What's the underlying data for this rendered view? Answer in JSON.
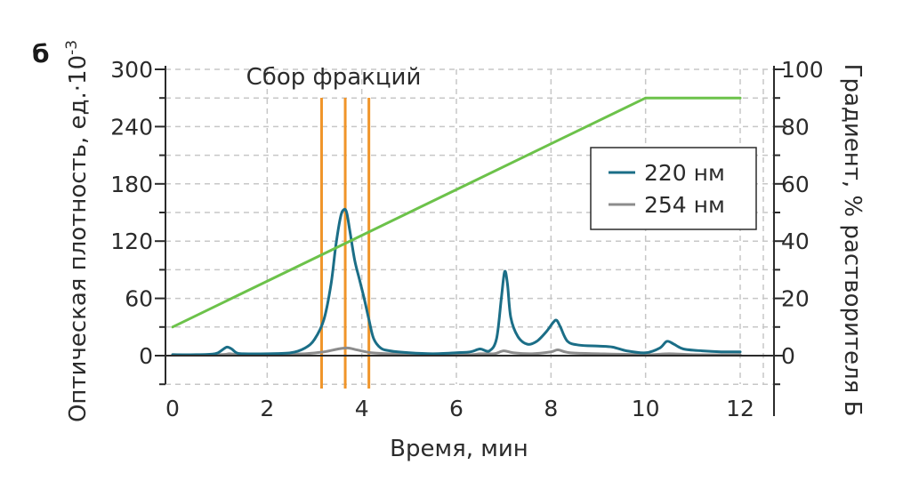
{
  "panel_label": "б",
  "colors": {
    "nm220": "#1b6e87",
    "nm254": "#8c8c8c",
    "gradient": "#6cc24a",
    "fraction_lines": "#f0952a",
    "grid": "#c7c7c7",
    "axis": "#2b2b2b"
  },
  "chart_data": {
    "type": "line",
    "xlabel": "Время, мин",
    "ylabel_left": "Оптическая плотность, ед.·10",
    "ylabel_left_sup": "-3",
    "ylabel_right": "Градиент, % растворителя Б",
    "xlim": [
      0,
      12.5
    ],
    "ylim_left": [
      -60,
      300
    ],
    "ylim_right": [
      -20,
      100
    ],
    "x_ticks": [
      "0",
      "2",
      "4",
      "6",
      "8",
      "10",
      "12"
    ],
    "y_left_ticks": [
      "0",
      "60",
      "120",
      "180",
      "240",
      "300"
    ],
    "y_right_ticks": [
      "0",
      "20",
      "40",
      "60",
      "80",
      "100"
    ],
    "grid": true,
    "legend_position": "right",
    "annotation": "Сбор фракций",
    "fraction_lines_x": [
      3.15,
      3.65,
      4.15
    ],
    "series": [
      {
        "name": "220 нм",
        "axis": "left",
        "x": [
          0,
          0.5,
          0.9,
          1.05,
          1.15,
          1.25,
          1.35,
          1.5,
          2.0,
          2.5,
          2.8,
          3.0,
          3.2,
          3.35,
          3.45,
          3.55,
          3.62,
          3.68,
          3.75,
          3.85,
          3.95,
          4.05,
          4.15,
          4.25,
          4.4,
          4.6,
          5.0,
          5.5,
          6.0,
          6.3,
          6.5,
          6.7,
          6.85,
          6.95,
          7.02,
          7.08,
          7.15,
          7.3,
          7.5,
          7.7,
          7.9,
          8.05,
          8.12,
          8.2,
          8.35,
          8.6,
          9.0,
          9.3,
          9.6,
          10.0,
          10.3,
          10.45,
          10.6,
          10.8,
          11.2,
          11.6,
          12.0
        ],
        "values": [
          1,
          1,
          2,
          6,
          9,
          7,
          3,
          2,
          2,
          3,
          8,
          17,
          38,
          75,
          115,
          145,
          153,
          150,
          130,
          100,
          80,
          60,
          38,
          18,
          8,
          5,
          3,
          2,
          3,
          4,
          7,
          5,
          18,
          60,
          88,
          75,
          40,
          20,
          12,
          15,
          25,
          35,
          37,
          30,
          15,
          11,
          10,
          9,
          5,
          3,
          8,
          15,
          12,
          7,
          5,
          4,
          4
        ]
      },
      {
        "name": "254 нм",
        "axis": "left",
        "x": [
          0,
          1.0,
          1.2,
          1.4,
          2.0,
          2.8,
          3.2,
          3.5,
          3.7,
          3.9,
          4.2,
          4.6,
          5.5,
          6.3,
          6.5,
          6.8,
          7.0,
          7.2,
          7.6,
          8.0,
          8.15,
          8.4,
          9.0,
          10.0,
          10.5,
          11.0,
          12.0
        ],
        "values": [
          1,
          1,
          2,
          1,
          1,
          2,
          4,
          7,
          8,
          6,
          3,
          2,
          1,
          1,
          2,
          2,
          5,
          3,
          2,
          4,
          6,
          3,
          2,
          1,
          2,
          1,
          1
        ]
      },
      {
        "name": "",
        "axis": "right",
        "x": [
          0,
          10,
          12
        ],
        "values": [
          10,
          90,
          90
        ]
      }
    ]
  }
}
